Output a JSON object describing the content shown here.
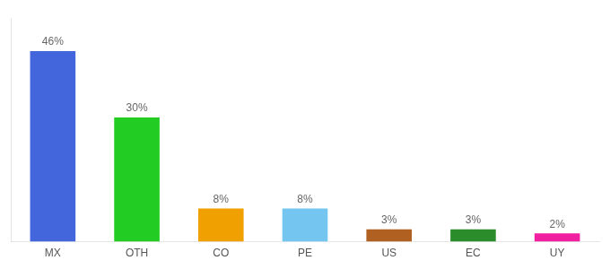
{
  "chart_data": {
    "type": "bar",
    "categories": [
      "MX",
      "OTH",
      "CO",
      "PE",
      "US",
      "EC",
      "UY"
    ],
    "values": [
      46,
      30,
      8,
      8,
      3,
      3,
      2
    ],
    "value_labels": [
      "46%",
      "30%",
      "8%",
      "8%",
      "3%",
      "3%",
      "2%"
    ],
    "data_labels": true,
    "colors": [
      "#4466dd",
      "#22cc22",
      "#f0a000",
      "#74c6f0",
      "#b06020",
      "#2a8c2a",
      "#f020a0"
    ],
    "ylim": [
      0,
      54
    ],
    "grid": false,
    "tick_labels": "x"
  }
}
